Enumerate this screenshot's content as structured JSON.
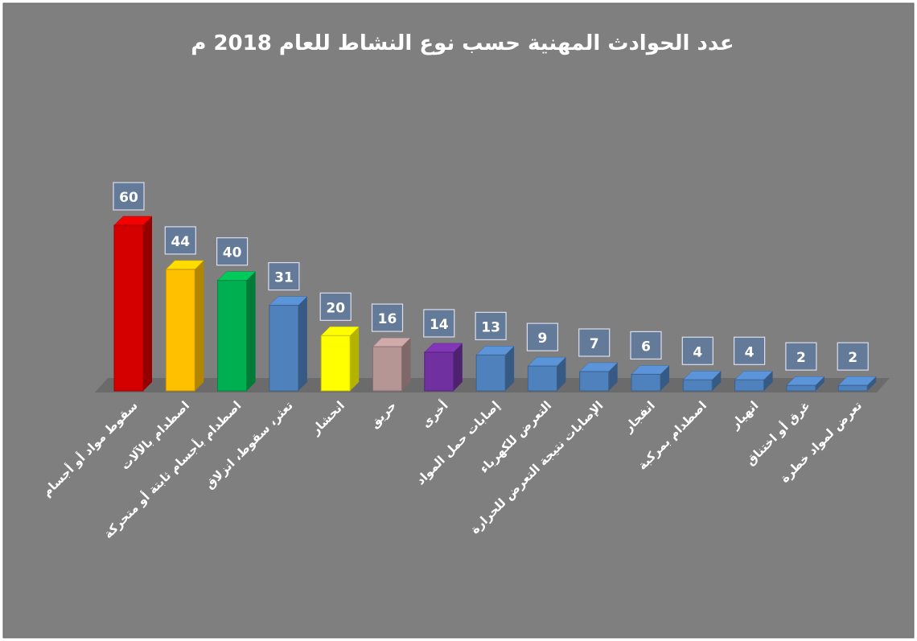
{
  "chart_data": {
    "type": "bar",
    "title": "عدد الحوادث المهنية  حسب نوع النشاط للعام 2018 م",
    "categories": [
      "سقوط مواد أو أجسام",
      "اصطدام بالآلات",
      "اصطدام بأجسام ثابتة أو متحركة",
      "تعثر، سقوط، انزلاق",
      "انحشار",
      "حريق",
      "أخرى",
      "إصابات حمل المواد",
      "التعرض للكهرباء",
      "الإصابات نتيجة التعرض للحرارة",
      "انفجار",
      "اصطدام بمركبة",
      "انهيار",
      "غرق أو اختناق",
      "تعرض لمواد خطرة"
    ],
    "values": [
      60,
      44,
      40,
      31,
      20,
      16,
      14,
      13,
      9,
      7,
      6,
      4,
      4,
      2,
      2
    ],
    "colors": [
      "#d40000",
      "#ffc000",
      "#00b050",
      "#4f81bd",
      "#ffff00",
      "#b69595",
      "#7030a0",
      "#4f81bd",
      "#4f81bd",
      "#4f81bd",
      "#4f81bd",
      "#4f81bd",
      "#4f81bd",
      "#4f81bd",
      "#4f81bd"
    ]
  }
}
